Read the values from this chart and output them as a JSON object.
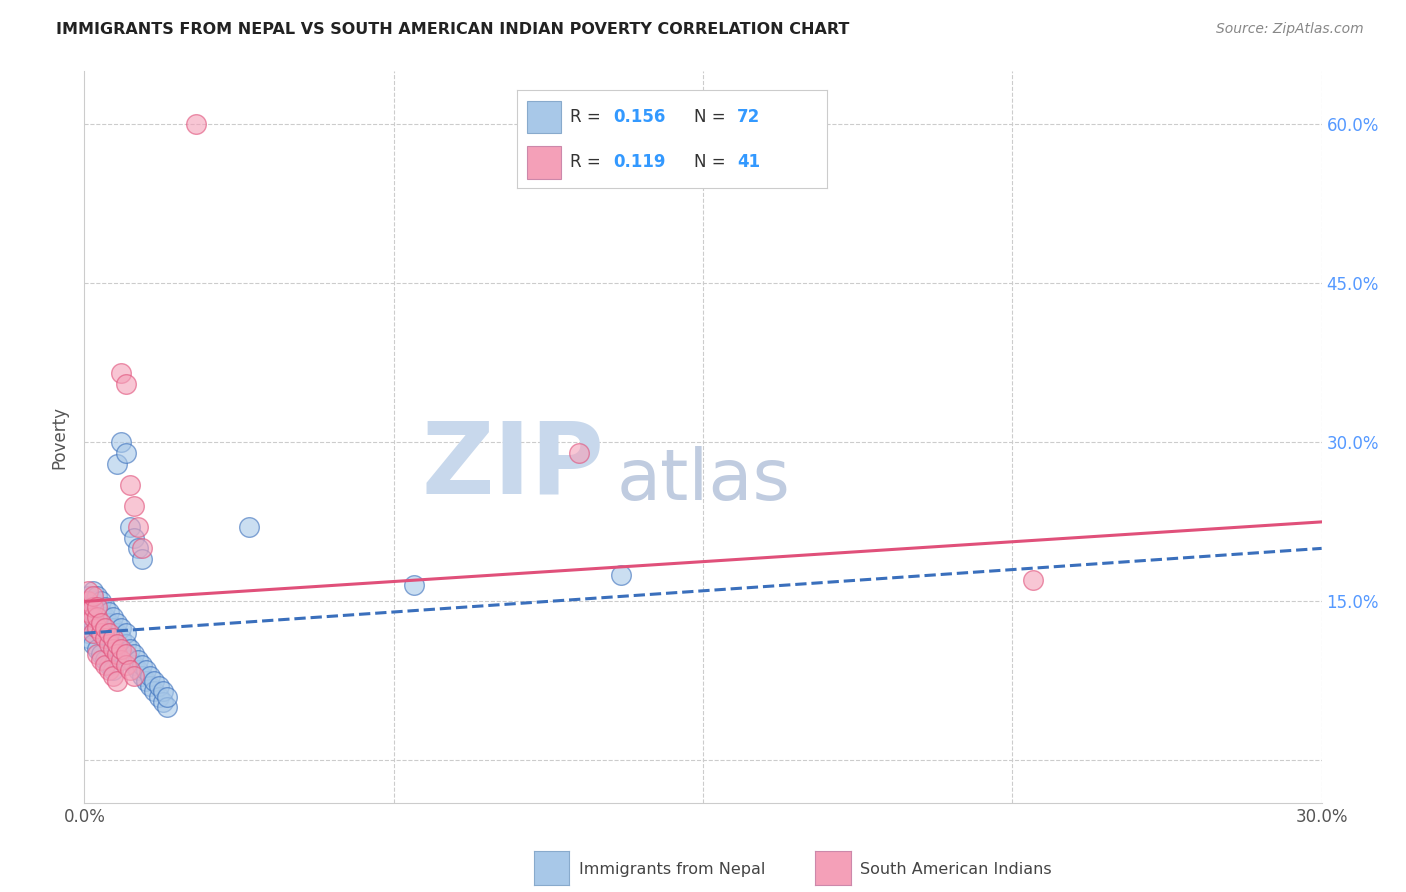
{
  "title": "IMMIGRANTS FROM NEPAL VS SOUTH AMERICAN INDIAN POVERTY CORRELATION CHART",
  "source": "Source: ZipAtlas.com",
  "ylabel": "Poverty",
  "yticks": [
    0.0,
    0.15,
    0.3,
    0.45,
    0.6
  ],
  "ytick_labels": [
    "",
    "15.0%",
    "30.0%",
    "45.0%",
    "60.0%"
  ],
  "xlim": [
    0.0,
    0.3
  ],
  "ylim": [
    -0.04,
    0.65
  ],
  "blue_color": "#a8c8e8",
  "pink_color": "#f4a0b8",
  "blue_line_color": "#3a6fbc",
  "pink_line_color": "#e0507a",
  "blue_scatter": [
    [
      0.001,
      0.125
    ],
    [
      0.001,
      0.135
    ],
    [
      0.001,
      0.145
    ],
    [
      0.001,
      0.155
    ],
    [
      0.001,
      0.12
    ],
    [
      0.001,
      0.115
    ],
    [
      0.002,
      0.13
    ],
    [
      0.002,
      0.14
    ],
    [
      0.002,
      0.15
    ],
    [
      0.002,
      0.16
    ],
    [
      0.002,
      0.11
    ],
    [
      0.003,
      0.125
    ],
    [
      0.003,
      0.135
    ],
    [
      0.003,
      0.145
    ],
    [
      0.003,
      0.155
    ],
    [
      0.003,
      0.105
    ],
    [
      0.004,
      0.13
    ],
    [
      0.004,
      0.14
    ],
    [
      0.004,
      0.15
    ],
    [
      0.004,
      0.1
    ],
    [
      0.005,
      0.125
    ],
    [
      0.005,
      0.135
    ],
    [
      0.005,
      0.145
    ],
    [
      0.005,
      0.095
    ],
    [
      0.006,
      0.12
    ],
    [
      0.006,
      0.13
    ],
    [
      0.006,
      0.14
    ],
    [
      0.006,
      0.09
    ],
    [
      0.007,
      0.115
    ],
    [
      0.007,
      0.125
    ],
    [
      0.007,
      0.135
    ],
    [
      0.007,
      0.085
    ],
    [
      0.008,
      0.11
    ],
    [
      0.008,
      0.12
    ],
    [
      0.008,
      0.13
    ],
    [
      0.008,
      0.28
    ],
    [
      0.009,
      0.105
    ],
    [
      0.009,
      0.115
    ],
    [
      0.009,
      0.125
    ],
    [
      0.009,
      0.3
    ],
    [
      0.01,
      0.1
    ],
    [
      0.01,
      0.11
    ],
    [
      0.01,
      0.12
    ],
    [
      0.01,
      0.29
    ],
    [
      0.011,
      0.095
    ],
    [
      0.011,
      0.105
    ],
    [
      0.011,
      0.22
    ],
    [
      0.012,
      0.09
    ],
    [
      0.012,
      0.1
    ],
    [
      0.012,
      0.21
    ],
    [
      0.013,
      0.085
    ],
    [
      0.013,
      0.095
    ],
    [
      0.013,
      0.2
    ],
    [
      0.014,
      0.08
    ],
    [
      0.014,
      0.09
    ],
    [
      0.014,
      0.19
    ],
    [
      0.015,
      0.075
    ],
    [
      0.015,
      0.085
    ],
    [
      0.016,
      0.07
    ],
    [
      0.016,
      0.08
    ],
    [
      0.017,
      0.065
    ],
    [
      0.017,
      0.075
    ],
    [
      0.018,
      0.06
    ],
    [
      0.018,
      0.07
    ],
    [
      0.019,
      0.055
    ],
    [
      0.019,
      0.065
    ],
    [
      0.02,
      0.05
    ],
    [
      0.02,
      0.06
    ],
    [
      0.04,
      0.22
    ],
    [
      0.08,
      0.165
    ],
    [
      0.13,
      0.175
    ]
  ],
  "pink_scatter": [
    [
      0.001,
      0.13
    ],
    [
      0.001,
      0.14
    ],
    [
      0.001,
      0.15
    ],
    [
      0.001,
      0.16
    ],
    [
      0.002,
      0.12
    ],
    [
      0.002,
      0.135
    ],
    [
      0.002,
      0.145
    ],
    [
      0.002,
      0.155
    ],
    [
      0.003,
      0.125
    ],
    [
      0.003,
      0.135
    ],
    [
      0.003,
      0.145
    ],
    [
      0.003,
      0.1
    ],
    [
      0.004,
      0.12
    ],
    [
      0.004,
      0.13
    ],
    [
      0.004,
      0.095
    ],
    [
      0.005,
      0.115
    ],
    [
      0.005,
      0.125
    ],
    [
      0.005,
      0.09
    ],
    [
      0.006,
      0.11
    ],
    [
      0.006,
      0.12
    ],
    [
      0.006,
      0.085
    ],
    [
      0.007,
      0.105
    ],
    [
      0.007,
      0.115
    ],
    [
      0.007,
      0.08
    ],
    [
      0.008,
      0.1
    ],
    [
      0.008,
      0.11
    ],
    [
      0.008,
      0.075
    ],
    [
      0.009,
      0.095
    ],
    [
      0.009,
      0.105
    ],
    [
      0.009,
      0.365
    ],
    [
      0.01,
      0.09
    ],
    [
      0.01,
      0.1
    ],
    [
      0.01,
      0.355
    ],
    [
      0.011,
      0.085
    ],
    [
      0.011,
      0.26
    ],
    [
      0.012,
      0.08
    ],
    [
      0.012,
      0.24
    ],
    [
      0.013,
      0.22
    ],
    [
      0.014,
      0.2
    ],
    [
      0.027,
      0.6
    ],
    [
      0.12,
      0.29
    ],
    [
      0.23,
      0.17
    ]
  ],
  "blue_trend": [
    0.0,
    0.3,
    0.12,
    0.2
  ],
  "pink_trend": [
    0.0,
    0.3,
    0.15,
    0.225
  ],
  "watermark_zip": "ZIP",
  "watermark_atlas": "atlas",
  "watermark_color_zip": "#c8d8ec",
  "watermark_color_atlas": "#c0cce0",
  "watermark_fontsize": 72
}
